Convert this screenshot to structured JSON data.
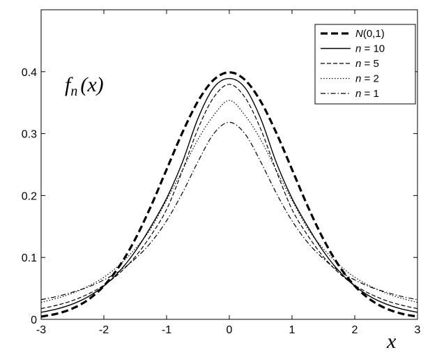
{
  "chart_data": {
    "type": "line",
    "xlabel": "x",
    "ylabel": "",
    "annotation": {
      "fn": "f",
      "sub": "n",
      "arg": "(x)"
    },
    "xlim": [
      -3,
      3
    ],
    "ylim": [
      0,
      0.5
    ],
    "xticks": [
      -3,
      -2,
      -1,
      0,
      1,
      2,
      3
    ],
    "xtick_labels": [
      "-3",
      "-2",
      "-1",
      "0",
      "1",
      "2",
      "3"
    ],
    "yticks": [
      0,
      0.1,
      0.2,
      0.3,
      0.4
    ],
    "ytick_labels": [
      "0",
      "0.1",
      "0.2",
      "0.3",
      "0.4"
    ],
    "grid": false,
    "legend_position": "top-right",
    "x": [
      -3,
      -2.75,
      -2.5,
      -2.25,
      -2,
      -1.75,
      -1.5,
      -1.25,
      -1,
      -0.75,
      -0.5,
      -0.25,
      0,
      0.25,
      0.5,
      0.75,
      1,
      1.25,
      1.5,
      1.75,
      2,
      2.25,
      2.5,
      2.75,
      3
    ],
    "series": [
      {
        "name": "N(0,1)",
        "legend_italic": "N",
        "legend_rest": "(0,1)",
        "style": "bold-dashed",
        "values": [
          0.0044,
          0.0091,
          0.0175,
          0.0317,
          0.054,
          0.0863,
          0.1295,
          0.1826,
          0.242,
          0.3011,
          0.3521,
          0.3867,
          0.3989,
          0.3867,
          0.3521,
          0.3011,
          0.242,
          0.1826,
          0.1295,
          0.0863,
          0.054,
          0.0317,
          0.0175,
          0.0091,
          0.0044
        ]
      },
      {
        "name": "n = 10",
        "legend_italic": "n",
        "legend_rest": " = 10",
        "style": "solid",
        "values": [
          0.0114,
          0.0167,
          0.0247,
          0.0366,
          0.0538,
          0.0778,
          0.1098,
          0.1499,
          0.1954,
          0.2531,
          0.3244,
          0.3741,
          0.389,
          0.3741,
          0.3244,
          0.2531,
          0.1954,
          0.1499,
          0.1098,
          0.0778,
          0.0538,
          0.0366,
          0.0247,
          0.0167,
          0.0114
        ]
      },
      {
        "name": "n = 5",
        "legend_italic": "n",
        "legend_rest": " = 5",
        "style": "dashed",
        "values": [
          0.0173,
          0.0228,
          0.0303,
          0.0409,
          0.0551,
          0.0747,
          0.1011,
          0.1355,
          0.1775,
          0.2395,
          0.3075,
          0.3583,
          0.3796,
          0.3583,
          0.3075,
          0.2395,
          0.1775,
          0.1355,
          0.1011,
          0.0747,
          0.0551,
          0.0409,
          0.0303,
          0.0228,
          0.0173
        ]
      },
      {
        "name": "n = 2",
        "legend_italic": "n",
        "legend_rest": " = 2",
        "style": "dotted",
        "values": [
          0.0274,
          0.0339,
          0.0422,
          0.0536,
          0.068,
          0.0881,
          0.114,
          0.1466,
          0.1925,
          0.2405,
          0.2904,
          0.3294,
          0.3536,
          0.3294,
          0.2904,
          0.2405,
          0.1925,
          0.1466,
          0.114,
          0.0881,
          0.068,
          0.0536,
          0.0422,
          0.0339,
          0.0274
        ]
      },
      {
        "name": "n = 1",
        "legend_italic": "n",
        "legend_rest": " = 1",
        "style": "dash-dot",
        "values": [
          0.0318,
          0.0369,
          0.0439,
          0.0522,
          0.0637,
          0.078,
          0.0979,
          0.1241,
          0.1592,
          0.2037,
          0.2546,
          0.2996,
          0.3183,
          0.2996,
          0.2546,
          0.2037,
          0.1592,
          0.1241,
          0.0979,
          0.078,
          0.0637,
          0.0522,
          0.0439,
          0.0369,
          0.0318
        ]
      }
    ]
  }
}
